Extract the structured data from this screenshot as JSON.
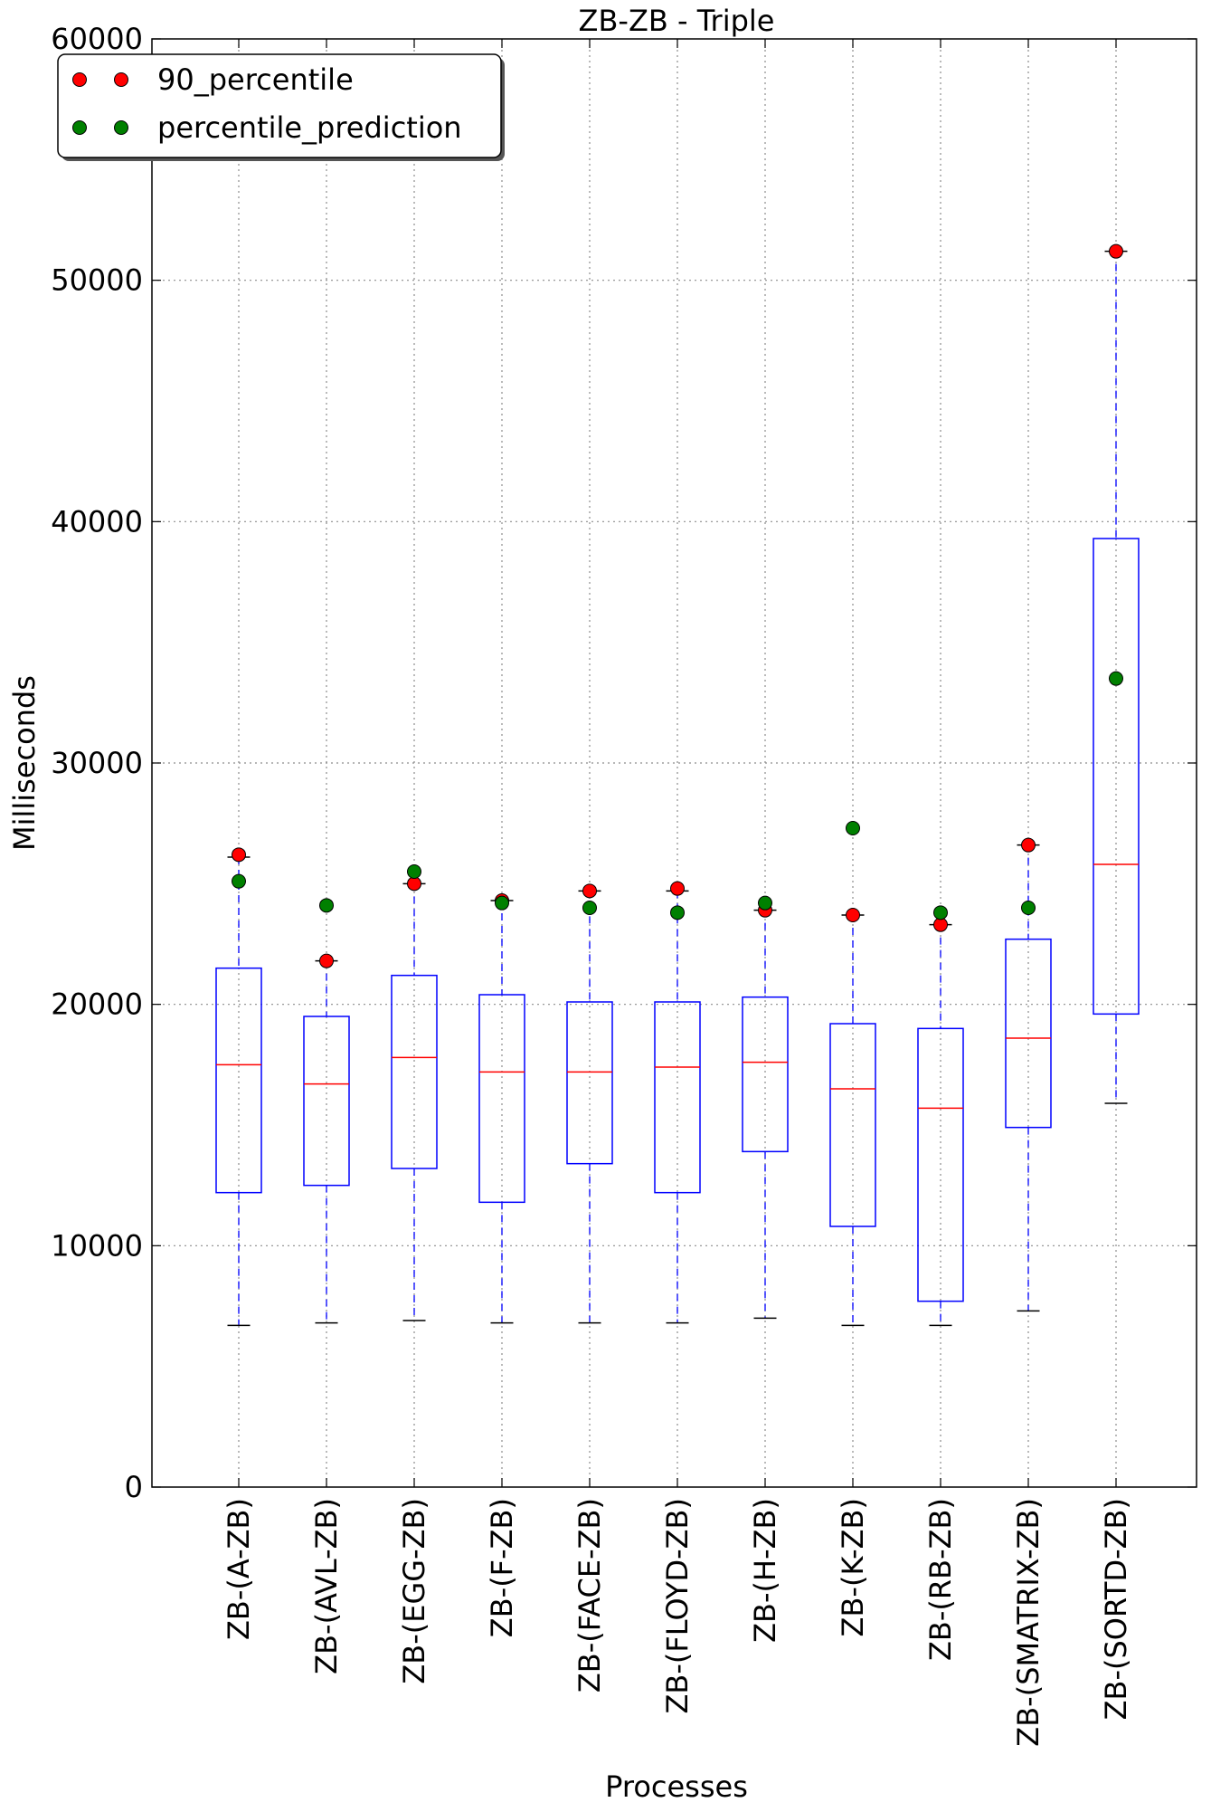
{
  "chart_data": {
    "type": "box",
    "title": "ZB-ZB - Triple",
    "xlabel": "Processes",
    "ylabel": "Milliseconds",
    "ylim": [
      0,
      60000
    ],
    "yticks": [
      0,
      10000,
      20000,
      30000,
      40000,
      50000,
      60000
    ],
    "grid": true,
    "legend_position": "top-left",
    "legend": [
      {
        "label": "90_percentile",
        "color": "#ff0000"
      },
      {
        "label": "percentile_prediction",
        "color": "#008000"
      }
    ],
    "colors": {
      "box": "#0000ff",
      "median": "#ff0000",
      "cap": "#000000"
    },
    "categories": [
      "ZB-(A-ZB)",
      "ZB-(AVL-ZB)",
      "ZB-(EGG-ZB)",
      "ZB-(F-ZB)",
      "ZB-(FACE-ZB)",
      "ZB-(FLOYD-ZB)",
      "ZB-(H-ZB)",
      "ZB-(K-ZB)",
      "ZB-(RB-ZB)",
      "ZB-(SMATRIX-ZB)",
      "ZB-(SORTD-ZB)"
    ],
    "boxes": [
      {
        "whislo": 6700,
        "q1": 12200,
        "med": 17500,
        "q3": 21500,
        "whishi": 26100
      },
      {
        "whislo": 6800,
        "q1": 12500,
        "med": 16700,
        "q3": 19500,
        "whishi": 21800
      },
      {
        "whislo": 6900,
        "q1": 13200,
        "med": 17800,
        "q3": 21200,
        "whishi": 25000
      },
      {
        "whislo": 6800,
        "q1": 11800,
        "med": 17200,
        "q3": 20400,
        "whishi": 24300
      },
      {
        "whislo": 6800,
        "q1": 13400,
        "med": 17200,
        "q3": 20100,
        "whishi": 24700
      },
      {
        "whislo": 6800,
        "q1": 12200,
        "med": 17400,
        "q3": 20100,
        "whishi": 24700
      },
      {
        "whislo": 7000,
        "q1": 13900,
        "med": 17600,
        "q3": 20300,
        "whishi": 23900
      },
      {
        "whislo": 6700,
        "q1": 10800,
        "med": 16500,
        "q3": 19200,
        "whishi": 23700
      },
      {
        "whislo": 6700,
        "q1": 7700,
        "med": 15700,
        "q3": 19000,
        "whishi": 23300
      },
      {
        "whislo": 7300,
        "q1": 14900,
        "med": 18600,
        "q3": 22700,
        "whishi": 26600
      },
      {
        "whislo": 15900,
        "q1": 19600,
        "med": 25800,
        "q3": 39300,
        "whishi": 51200
      }
    ],
    "series": [
      {
        "name": "90_percentile",
        "values": [
          26200,
          21800,
          25000,
          24300,
          24700,
          24800,
          23900,
          23700,
          23300,
          26600,
          51200
        ]
      },
      {
        "name": "percentile_prediction",
        "values": [
          25100,
          24100,
          25500,
          24200,
          24000,
          23800,
          24200,
          27300,
          23800,
          24000,
          33500
        ]
      }
    ]
  }
}
